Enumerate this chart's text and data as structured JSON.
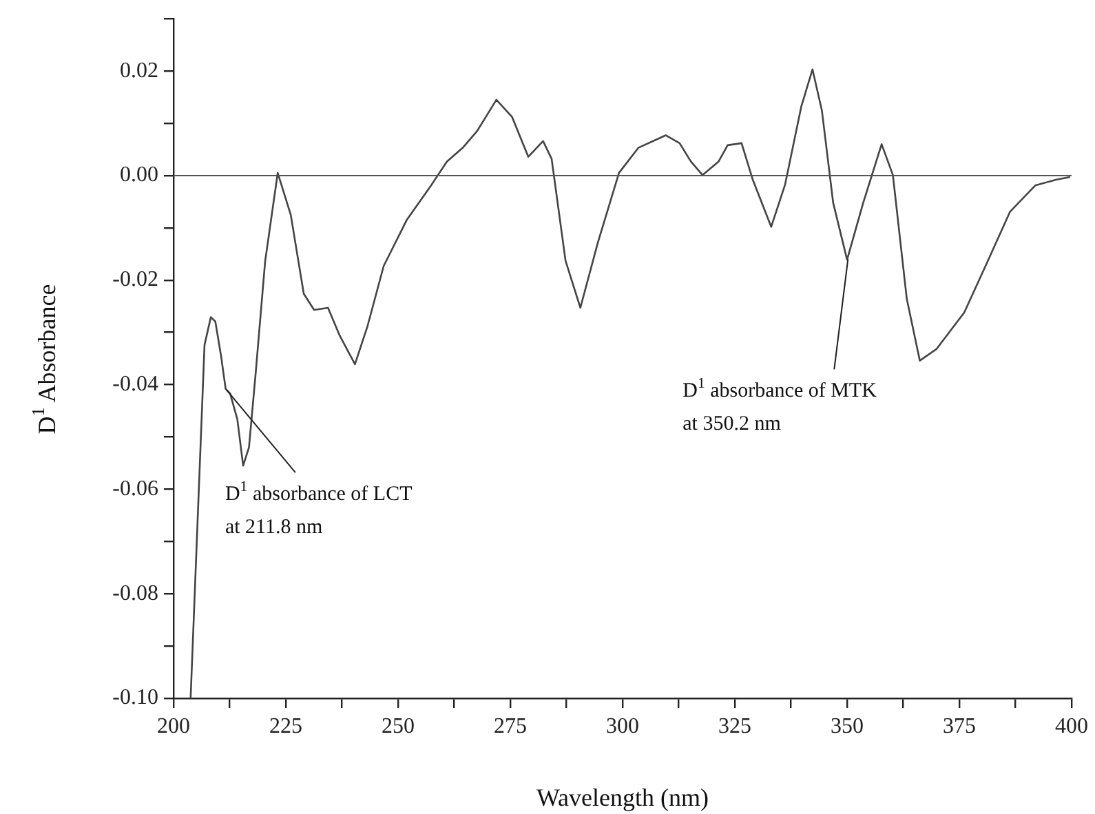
{
  "chart_data": {
    "type": "line",
    "xlabel": "Wavelength (nm)",
    "ylabel": "D$^{1}$ Absorbance",
    "xlim": [
      200,
      400
    ],
    "ylim": [
      -0.1,
      0.03
    ],
    "xticks": [
      200,
      {
        "value": 212.5,
        "label": null
      },
      225,
      {
        "value": 237.5,
        "label": null
      },
      250,
      {
        "value": 262.5,
        "label": null
      },
      275,
      {
        "value": 287.5,
        "label": null
      },
      300,
      {
        "value": 312.5,
        "label": null
      },
      325,
      {
        "value": 337.5,
        "label": null
      },
      350,
      {
        "value": 362.5,
        "label": null
      },
      375,
      {
        "value": 387.5,
        "label": null
      },
      400
    ],
    "yticks": [
      {
        "value": -0.1,
        "label": "-0.10"
      },
      {
        "value": -0.09,
        "label": null
      },
      {
        "value": -0.08,
        "label": "-0.08"
      },
      {
        "value": -0.07,
        "label": null
      },
      {
        "value": -0.06,
        "label": "-0.06"
      },
      {
        "value": -0.05,
        "label": null
      },
      {
        "value": -0.04,
        "label": "-0.04"
      },
      {
        "value": -0.03,
        "label": null
      },
      {
        "value": -0.02,
        "label": "-0.02"
      },
      {
        "value": -0.01,
        "label": null
      },
      {
        "value": 0,
        "label": "0.00"
      },
      {
        "value": 0.01,
        "label": null
      },
      {
        "value": 0.02,
        "label": "0.02"
      },
      {
        "value": 0.03,
        "label": null
      }
    ],
    "grid": false,
    "legend": false,
    "marker": "none",
    "line_style": "solid",
    "ref_lines": [
      {
        "axis": "y",
        "value": 0,
        "color": "#555555"
      }
    ],
    "annotations": [
      {
        "text": "D$^{1}$ absorbance of LCT\nat 211.8 nm",
        "x": 211.8,
        "y": -0.041
      },
      {
        "text": "D$^{1}$ absorbance of MTK\nat 350.2 nm",
        "x": 350.2,
        "y": -0.016
      }
    ],
    "series": [
      {
        "color": "#444444",
        "x": [
          203.8,
          206.9,
          208.3,
          209.3,
          210.6,
          211.6,
          212.6,
          214.2,
          215.5,
          216.8,
          218.3,
          220.4,
          223.2,
          226.1,
          229,
          231.3,
          234.4,
          237,
          240.4,
          243.2,
          246.8,
          252,
          257.2,
          260.9,
          264.5,
          267.6,
          271.9,
          275.4,
          279,
          282.3,
          284.2,
          287.3,
          290.6,
          294.5,
          299.2,
          303.5,
          309.6,
          312.7,
          315.2,
          317.8,
          321.4,
          323.4,
          326.5,
          329,
          333.1,
          336.2,
          339.8,
          342.3,
          344.4,
          346.9,
          350,
          353.6,
          357.7,
          360.2,
          363.3,
          366.2,
          369.9,
          376.1,
          381.2,
          386.3,
          391.9,
          396.5,
          399.5
        ],
        "values": [
          -0.1,
          -0.0324,
          -0.0271,
          -0.0279,
          -0.0346,
          -0.0408,
          -0.0417,
          -0.0466,
          -0.0555,
          -0.052,
          -0.0377,
          -0.0164,
          0.0005,
          -0.0075,
          -0.0226,
          -0.0257,
          -0.0253,
          -0.0306,
          -0.0361,
          -0.0288,
          -0.0173,
          -0.0084,
          -0.0021,
          0.0027,
          0.0054,
          0.0085,
          0.0145,
          0.0112,
          0.0036,
          0.0066,
          0.0032,
          -0.0163,
          -0.0253,
          -0.0128,
          0.0005,
          0.0053,
          0.0077,
          0.0062,
          0.0027,
          0.0001,
          0.0027,
          0.0058,
          0.0062,
          -0.0008,
          -0.0098,
          -0.0017,
          0.0132,
          0.0203,
          0.0124,
          -0.0052,
          -0.0161,
          -0.0052,
          0.006,
          0.0001,
          -0.0236,
          -0.0354,
          -0.0332,
          -0.0262,
          -0.0166,
          -0.0069,
          -0.0019,
          -0.0008,
          -0.0003
        ]
      }
    ]
  }
}
